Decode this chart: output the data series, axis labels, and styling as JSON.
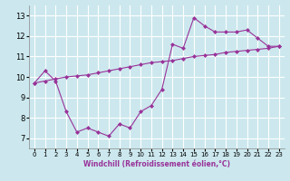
{
  "line1_x": [
    0,
    1,
    2,
    3,
    4,
    5,
    6,
    7,
    8,
    9,
    10,
    11,
    12,
    13,
    14,
    15,
    16,
    17,
    18,
    19,
    20,
    21,
    22,
    23
  ],
  "line1_y": [
    9.7,
    10.3,
    9.8,
    8.3,
    7.3,
    7.5,
    7.3,
    7.1,
    7.7,
    7.5,
    8.3,
    8.6,
    9.4,
    11.6,
    11.4,
    12.9,
    12.5,
    12.2,
    12.2,
    12.2,
    12.3,
    11.9,
    11.5,
    11.5
  ],
  "line2_x": [
    0,
    1,
    2,
    3,
    4,
    5,
    6,
    7,
    8,
    9,
    10,
    11,
    12,
    13,
    14,
    15,
    16,
    17,
    18,
    19,
    20,
    21,
    22,
    23
  ],
  "line2_y": [
    9.7,
    9.8,
    9.9,
    10.0,
    10.05,
    10.1,
    10.2,
    10.3,
    10.4,
    10.5,
    10.6,
    10.7,
    10.75,
    10.8,
    10.9,
    11.0,
    11.05,
    11.1,
    11.2,
    11.25,
    11.3,
    11.35,
    11.4,
    11.5
  ],
  "line_color": "#993399",
  "marker": "D",
  "marker_size": 2,
  "bg_color": "#cce8ee",
  "grid_color": "#ffffff",
  "xlabel": "Windchill (Refroidissement éolien,°C)",
  "xlim": [
    -0.5,
    23.5
  ],
  "ylim": [
    6.5,
    13.5
  ],
  "xticks": [
    0,
    1,
    2,
    3,
    4,
    5,
    6,
    7,
    8,
    9,
    10,
    11,
    12,
    13,
    14,
    15,
    16,
    17,
    18,
    19,
    20,
    21,
    22,
    23
  ],
  "yticks": [
    7,
    8,
    9,
    10,
    11,
    12,
    13
  ]
}
